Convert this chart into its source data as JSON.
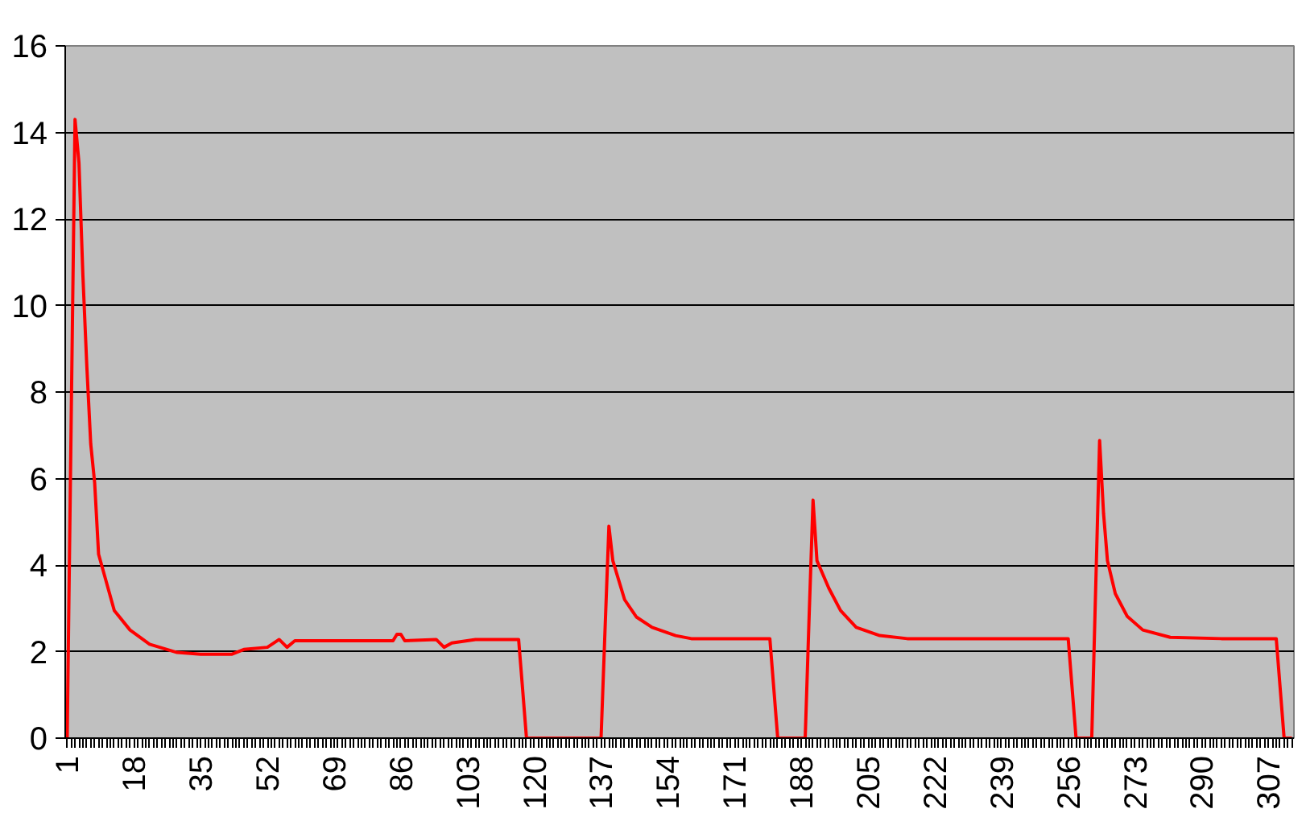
{
  "chart_data": {
    "type": "line",
    "xlim": [
      0.5,
      313.5
    ],
    "ylim": [
      0,
      16
    ],
    "xticks": [
      1,
      18,
      35,
      52,
      69,
      86,
      103,
      120,
      137,
      154,
      171,
      188,
      205,
      222,
      239,
      256,
      273,
      290,
      307
    ],
    "yticks": [
      0,
      2,
      4,
      6,
      8,
      10,
      12,
      14,
      16
    ],
    "grid": "y",
    "marker": "none",
    "line_style": "solid",
    "series": [
      {
        "color": "#ff0000",
        "x": [
          1,
          2,
          3,
          4,
          5,
          6,
          7,
          8,
          9,
          11,
          13,
          17,
          22,
          29,
          35,
          43,
          46,
          52,
          55,
          57,
          59,
          70,
          84,
          85,
          86,
          87,
          95,
          97,
          99,
          105,
          116,
          117,
          118,
          130,
          137,
          138,
          139,
          140,
          143,
          146,
          150,
          156,
          160,
          170,
          180,
          181,
          182,
          186,
          189,
          190,
          191,
          192,
          195,
          198,
          202,
          208,
          215,
          230,
          256,
          257,
          258,
          262,
          263,
          264,
          265,
          266,
          268,
          271,
          275,
          282,
          295,
          309,
          310,
          311,
          313
        ],
        "values": [
          0,
          7.2,
          14.3,
          13.3,
          10.7,
          8.6,
          6.8,
          5.9,
          4.25,
          3.6,
          2.95,
          2.5,
          2.17,
          1.98,
          1.94,
          1.94,
          2.05,
          2.1,
          2.28,
          2.1,
          2.25,
          2.25,
          2.25,
          2.4,
          2.4,
          2.25,
          2.28,
          2.1,
          2.2,
          2.28,
          2.28,
          1.15,
          0,
          0,
          0,
          2.47,
          4.9,
          4.1,
          3.2,
          2.8,
          2.56,
          2.37,
          2.3,
          2.3,
          2.3,
          1.15,
          0,
          0,
          0,
          2.8,
          5.5,
          4.1,
          3.47,
          2.95,
          2.56,
          2.37,
          2.3,
          2.3,
          2.3,
          1.15,
          0,
          0,
          3.47,
          6.88,
          5.2,
          4.1,
          3.34,
          2.82,
          2.5,
          2.33,
          2.3,
          2.3,
          1.15,
          0,
          0
        ]
      }
    ]
  }
}
